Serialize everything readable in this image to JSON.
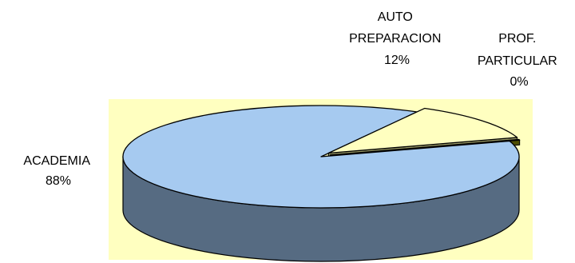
{
  "chart_data": {
    "type": "pie",
    "style": "3d-exploded",
    "slices": [
      {
        "name": "ACADEMIA",
        "value": 88,
        "label": "88%",
        "color": "#a6caf0",
        "side_color": "#566b82"
      },
      {
        "name": "AUTO PREPARACION",
        "value": 12,
        "label": "12%",
        "color": "#ffffc0",
        "side_color": "#999966"
      },
      {
        "name": "PROF. PARTICULAR",
        "value": 0,
        "label": "0%",
        "color": "#808000",
        "side_color": "#4d4d00"
      }
    ],
    "label_lines": {
      "academia": [
        "ACADEMIA",
        "88%"
      ],
      "auto": [
        "AUTO",
        "PREPARACION",
        "12%"
      ],
      "prof": [
        "PROF.",
        "PARTICULAR",
        "0%"
      ]
    },
    "plot_area_color": "#ffffc0",
    "legend": "none"
  }
}
